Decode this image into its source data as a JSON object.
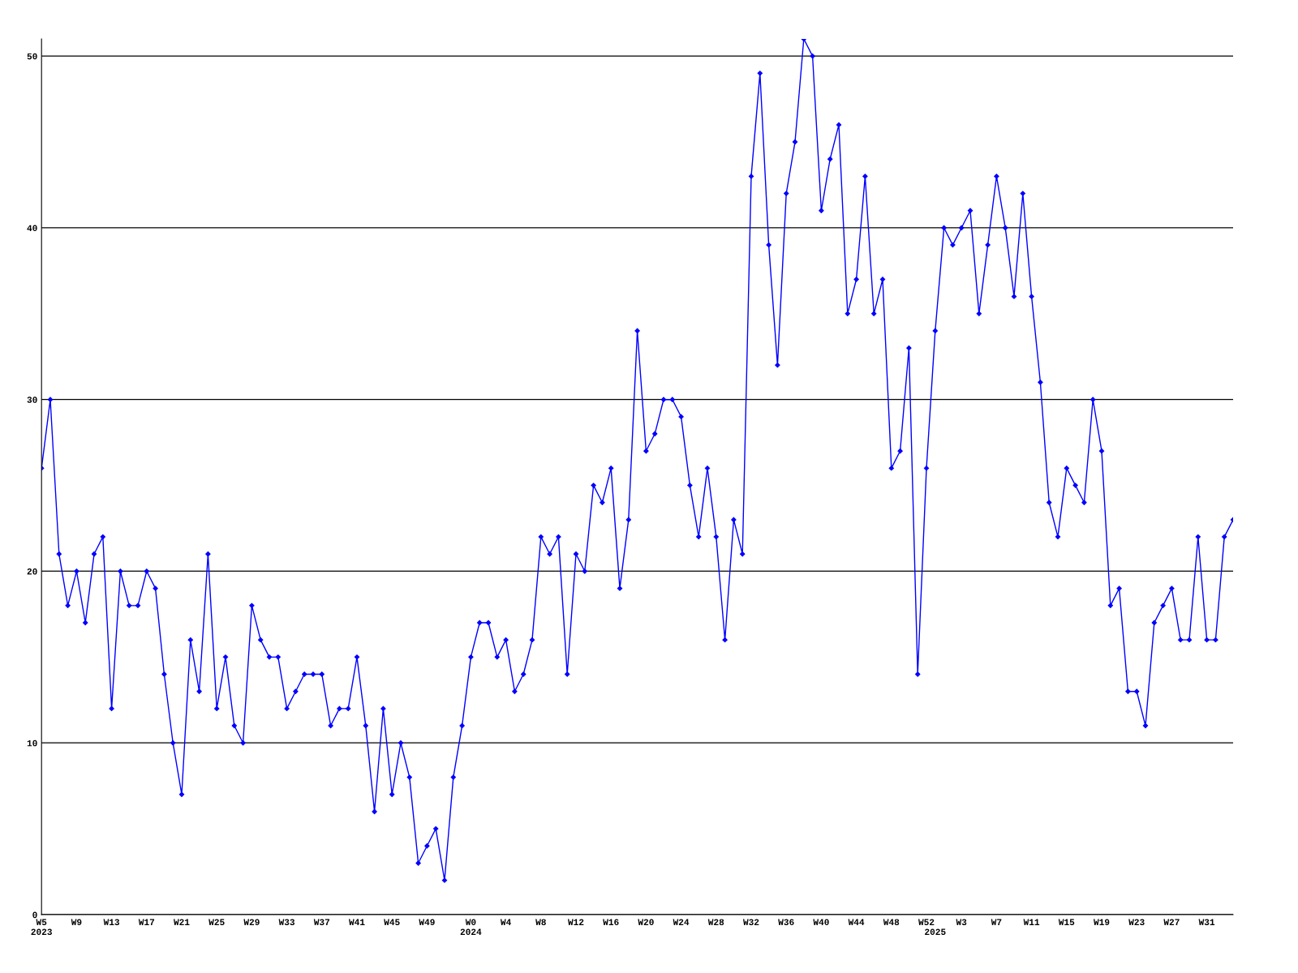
{
  "chart_data": {
    "type": "line",
    "categories": [
      "W5\n2023",
      null,
      null,
      null,
      "W9",
      null,
      null,
      null,
      "W13",
      null,
      null,
      null,
      "W17",
      null,
      null,
      null,
      "W21",
      null,
      null,
      null,
      "W25",
      null,
      null,
      null,
      "W29",
      null,
      null,
      null,
      "W33",
      null,
      null,
      null,
      "W37",
      null,
      null,
      null,
      "W41",
      null,
      null,
      null,
      "W45",
      null,
      null,
      null,
      "W49",
      null,
      null,
      null,
      null,
      "W0\n2024",
      null,
      null,
      null,
      "W4",
      null,
      null,
      null,
      "W8",
      null,
      null,
      null,
      "W12",
      null,
      null,
      null,
      "W16",
      null,
      null,
      null,
      "W20",
      null,
      null,
      null,
      "W24",
      null,
      null,
      null,
      "W28",
      null,
      null,
      null,
      "W32",
      null,
      null,
      null,
      "W36",
      null,
      null,
      null,
      "W40",
      null,
      null,
      null,
      "W44",
      null,
      null,
      null,
      "W48",
      null,
      null,
      null,
      "W52",
      "\n2025",
      null,
      null,
      "W3",
      null,
      null,
      null,
      "W7",
      null,
      null,
      null,
      "W11",
      null,
      null,
      null,
      "W15",
      null,
      null,
      null,
      "W19",
      null,
      null,
      null,
      "W23",
      null,
      null,
      null,
      "W27",
      null,
      null,
      null,
      "W31",
      null,
      null,
      null
    ],
    "series": [
      {
        "color": "#0000ff",
        "values": [
          26,
          30,
          21,
          18,
          20,
          17,
          21,
          22,
          12,
          20,
          18,
          18,
          20,
          19,
          14,
          10,
          7,
          16,
          13,
          21,
          12,
          15,
          11,
          10,
          18,
          16,
          15,
          15,
          12,
          13,
          14,
          14,
          14,
          11,
          12,
          12,
          15,
          11,
          6,
          12,
          7,
          10,
          8,
          3,
          4,
          5,
          2,
          8,
          11,
          15,
          17,
          17,
          15,
          16,
          13,
          14,
          16,
          22,
          21,
          22,
          14,
          21,
          20,
          25,
          24,
          26,
          19,
          23,
          34,
          27,
          28,
          30,
          30,
          29,
          25,
          22,
          26,
          22,
          16,
          23,
          21,
          43,
          49,
          39,
          32,
          42,
          45,
          51,
          50,
          41,
          44,
          46,
          35,
          37,
          43,
          35,
          37,
          26,
          27,
          33,
          14,
          26,
          34,
          40,
          39,
          40,
          41,
          35,
          39,
          43,
          40,
          36,
          42,
          36,
          31,
          24,
          22,
          26,
          25,
          24,
          30,
          27,
          18,
          19,
          13,
          13,
          11,
          17,
          18,
          19,
          16,
          16,
          22,
          16,
          16,
          22,
          23
        ]
      }
    ],
    "ylim": [
      0,
      51
    ],
    "yticks": [
      0,
      10,
      20,
      30,
      40,
      50
    ],
    "grid": "y",
    "marker": "diamond",
    "line_style": "solid"
  }
}
